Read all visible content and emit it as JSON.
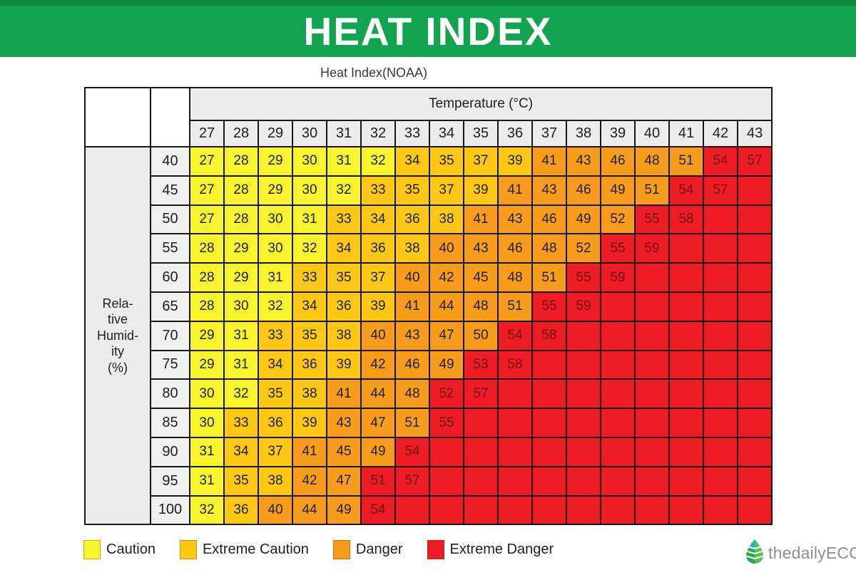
{
  "banner": {
    "title": "HEAT INDEX",
    "bg": "#11A350",
    "bg_top": "#0A8C3E"
  },
  "subtitle": "Heat Index(NOAA)",
  "table": {
    "temperature_header": "Temperature (°C)",
    "humidity_label_lines": [
      "Rela-",
      "tive",
      "Humid-",
      "ity",
      "(%)"
    ]
  },
  "level_colors": {
    "1": "#F9F32B",
    "2": "#FCC813",
    "3": "#F89C1B",
    "4": "#EE1C24"
  },
  "legend": [
    {
      "label": "Caution",
      "level": "1"
    },
    {
      "label": "Extreme Caution",
      "level": "2"
    },
    {
      "label": "Danger",
      "level": "3"
    },
    {
      "label": "Extreme Danger",
      "level": "4"
    }
  ],
  "logo": {
    "text": "thedailyECO"
  },
  "chart_data": {
    "type": "heatmap",
    "title": "Heat Index(NOAA)",
    "xlabel": "Temperature (°C)",
    "ylabel": "Relative Humidity (%)",
    "x": [
      27,
      28,
      29,
      30,
      31,
      32,
      33,
      34,
      35,
      36,
      37,
      38,
      39,
      40,
      41,
      42,
      43
    ],
    "y": [
      40,
      45,
      50,
      55,
      60,
      65,
      70,
      75,
      80,
      85,
      90,
      95,
      100
    ],
    "values": [
      [
        27,
        28,
        29,
        30,
        31,
        32,
        34,
        35,
        37,
        39,
        41,
        43,
        46,
        48,
        51,
        54,
        57
      ],
      [
        27,
        28,
        29,
        30,
        32,
        33,
        35,
        37,
        39,
        41,
        43,
        46,
        49,
        51,
        54,
        57,
        null
      ],
      [
        27,
        28,
        30,
        31,
        33,
        34,
        36,
        38,
        41,
        43,
        46,
        49,
        52,
        55,
        58,
        null,
        null
      ],
      [
        28,
        29,
        30,
        32,
        34,
        36,
        38,
        40,
        43,
        46,
        48,
        52,
        55,
        59,
        null,
        null,
        null
      ],
      [
        28,
        29,
        31,
        33,
        35,
        37,
        40,
        42,
        45,
        48,
        51,
        55,
        59,
        null,
        null,
        null,
        null
      ],
      [
        28,
        30,
        32,
        34,
        36,
        39,
        41,
        44,
        48,
        51,
        55,
        59,
        null,
        null,
        null,
        null,
        null
      ],
      [
        29,
        31,
        33,
        35,
        38,
        40,
        43,
        47,
        50,
        54,
        58,
        null,
        null,
        null,
        null,
        null,
        null
      ],
      [
        29,
        31,
        34,
        36,
        39,
        42,
        46,
        49,
        53,
        58,
        null,
        null,
        null,
        null,
        null,
        null,
        null
      ],
      [
        30,
        32,
        35,
        38,
        41,
        44,
        48,
        52,
        57,
        null,
        null,
        null,
        null,
        null,
        null,
        null,
        null
      ],
      [
        30,
        33,
        36,
        39,
        43,
        47,
        51,
        55,
        null,
        null,
        null,
        null,
        null,
        null,
        null,
        null,
        null
      ],
      [
        31,
        34,
        37,
        41,
        45,
        49,
        54,
        null,
        null,
        null,
        null,
        null,
        null,
        null,
        null,
        null,
        null
      ],
      [
        31,
        35,
        38,
        42,
        47,
        51,
        57,
        null,
        null,
        null,
        null,
        null,
        null,
        null,
        null,
        null,
        null
      ],
      [
        32,
        36,
        40,
        44,
        49,
        54,
        null,
        null,
        null,
        null,
        null,
        null,
        null,
        null,
        null,
        null,
        null
      ]
    ],
    "levels": [
      [
        1,
        1,
        1,
        1,
        1,
        1,
        2,
        2,
        2,
        2,
        3,
        3,
        3,
        3,
        3,
        4,
        4
      ],
      [
        1,
        1,
        1,
        1,
        1,
        2,
        2,
        2,
        2,
        3,
        3,
        3,
        3,
        3,
        4,
        4,
        4
      ],
      [
        1,
        1,
        1,
        1,
        2,
        2,
        2,
        2,
        3,
        3,
        3,
        3,
        3,
        4,
        4,
        4,
        4
      ],
      [
        1,
        1,
        1,
        1,
        2,
        2,
        2,
        3,
        3,
        3,
        3,
        3,
        4,
        4,
        4,
        4,
        4
      ],
      [
        1,
        1,
        1,
        2,
        2,
        2,
        3,
        3,
        3,
        3,
        3,
        4,
        4,
        4,
        4,
        4,
        4
      ],
      [
        1,
        1,
        1,
        2,
        2,
        2,
        3,
        3,
        3,
        3,
        4,
        4,
        4,
        4,
        4,
        4,
        4
      ],
      [
        1,
        1,
        2,
        2,
        2,
        3,
        3,
        3,
        3,
        4,
        4,
        4,
        4,
        4,
        4,
        4,
        4
      ],
      [
        1,
        1,
        2,
        2,
        2,
        3,
        3,
        3,
        4,
        4,
        4,
        4,
        4,
        4,
        4,
        4,
        4
      ],
      [
        1,
        1,
        2,
        2,
        3,
        3,
        3,
        4,
        4,
        4,
        4,
        4,
        4,
        4,
        4,
        4,
        4
      ],
      [
        1,
        2,
        2,
        2,
        3,
        3,
        3,
        4,
        4,
        4,
        4,
        4,
        4,
        4,
        4,
        4,
        4
      ],
      [
        1,
        2,
        2,
        3,
        3,
        3,
        4,
        4,
        4,
        4,
        4,
        4,
        4,
        4,
        4,
        4,
        4
      ],
      [
        1,
        2,
        2,
        3,
        3,
        4,
        4,
        4,
        4,
        4,
        4,
        4,
        4,
        4,
        4,
        4,
        4
      ],
      [
        1,
        2,
        3,
        3,
        3,
        4,
        4,
        4,
        4,
        4,
        4,
        4,
        4,
        4,
        4,
        4,
        4
      ]
    ],
    "level_names": {
      "1": "Caution",
      "2": "Extreme Caution",
      "3": "Danger",
      "4": "Extreme Danger"
    },
    "legend_position": "bottom",
    "grid": true
  }
}
